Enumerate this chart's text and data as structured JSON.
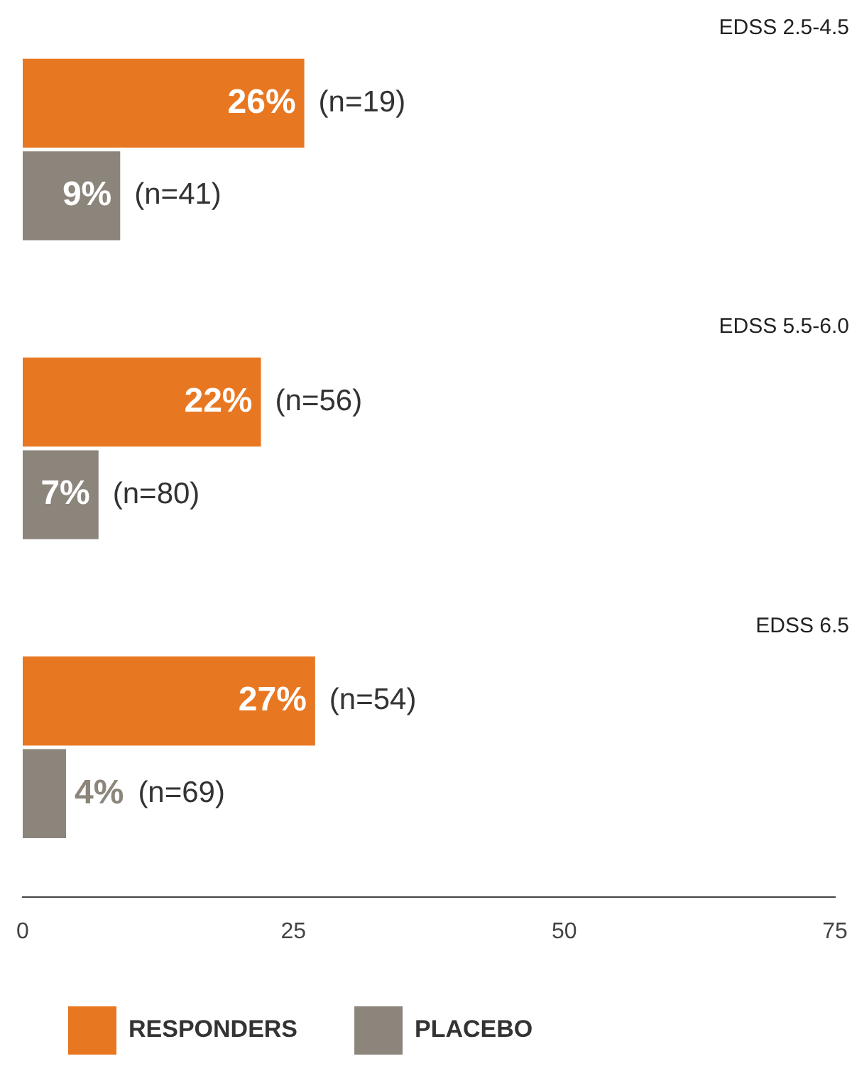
{
  "chart_data": {
    "type": "bar",
    "orientation": "horizontal",
    "categories": [
      "EDSS 2.5-4.5",
      "EDSS 5.5-6.0",
      "EDSS 6.5"
    ],
    "series": [
      {
        "name": "RESPONDERS",
        "color": "#e87722",
        "values": [
          26,
          22,
          27
        ],
        "value_labels": [
          "26%",
          "22%",
          "27%"
        ]
      },
      {
        "name": "PLACEBO",
        "color": "#8c857b",
        "values": [
          9,
          7,
          4
        ],
        "value_labels": [
          "9%",
          "7%",
          "4%"
        ]
      }
    ],
    "annotations": [
      {
        "text": "(n=19)",
        "x": 26,
        "y": "EDSS 2.5-4.5"
      },
      {
        "text": "(n=41)",
        "x": 9,
        "y": "EDSS 2.5-4.5"
      },
      {
        "text": "(n=56)",
        "x": 22,
        "y": "EDSS 5.5-6.0"
      },
      {
        "text": "(n=80)",
        "x": 7,
        "y": "EDSS 5.5-6.0"
      },
      {
        "text": "(n=54)",
        "x": 27,
        "y": "EDSS 6.5"
      },
      {
        "text": "(n=69)",
        "x": 4,
        "y": "EDSS 6.5"
      }
    ],
    "xlim": [
      0,
      75
    ],
    "xticks": [
      0,
      25,
      50,
      75
    ],
    "grid": false,
    "legend": "bottom"
  }
}
